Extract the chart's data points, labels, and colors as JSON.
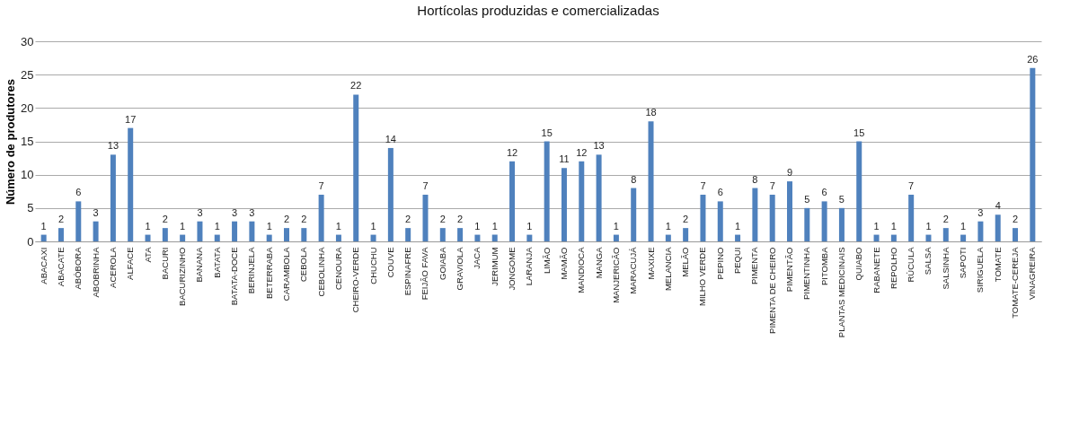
{
  "chart_data": {
    "type": "bar",
    "title": "Hortícolas produzidas e comercializadas",
    "ylabel": "Número de produtores",
    "categories": [
      "ABACAXI",
      "ABACATE",
      "ABÓBORA",
      "ABOBRINHA",
      "ACEROLA",
      "ALFACE",
      "ATA",
      "BACURI",
      "BACURIZINHO",
      "BANANA",
      "BATATA",
      "BATATA-DOCE",
      "BERINJELA",
      "BETERRABA",
      "CARAMBOLA",
      "CEBOLA",
      "CEBOLINHA",
      "CENOURA",
      "CHEIRO-VERDE",
      "CHUCHU",
      "COUVE",
      "ESPINAFRE",
      "FEIJÃO FAVA",
      "GOIABA",
      "GRAVIOLA",
      "JACA",
      "JERIMUM",
      "JONGOME",
      "LARANJA",
      "LIMÃO",
      "MAMÃO",
      "MANDIOCA",
      "MANGA",
      "MANJERICÃO",
      "MARACUJÁ",
      "MAXIXE",
      "MELANCIA",
      "MELÃO",
      "MILHO VERDE",
      "PEPINO",
      "PEQUI",
      "PIMENTA",
      "PIMENTA DE CHEIRO",
      "PIMENTÃO",
      "PIMENTINHA",
      "PITOMBA",
      "PLANTAS MEDICINAIS",
      "QUIABO",
      "RABANETE",
      "REPOLHO",
      "RÚCULA",
      "SALSA",
      "SALSINHA",
      "SAPOTI",
      "SIRIGUELA",
      "TOMATE",
      "TOMATE-CEREJA",
      "VINAGREIRA"
    ],
    "values": [
      1,
      2,
      6,
      3,
      13,
      17,
      1,
      2,
      1,
      3,
      1,
      3,
      3,
      1,
      2,
      2,
      7,
      1,
      22,
      1,
      14,
      2,
      7,
      2,
      2,
      1,
      1,
      12,
      1,
      15,
      11,
      12,
      13,
      1,
      8,
      18,
      1,
      2,
      7,
      6,
      1,
      8,
      7,
      9,
      5,
      6,
      5,
      15,
      1,
      1,
      7,
      1,
      2,
      1,
      3,
      4,
      2,
      26
    ],
    "color": "#4f81bd",
    "ylim": [
      0,
      30
    ],
    "yticks": [
      0,
      5,
      10,
      15,
      20,
      25,
      30
    ],
    "grid": "y",
    "data_labels": true
  }
}
